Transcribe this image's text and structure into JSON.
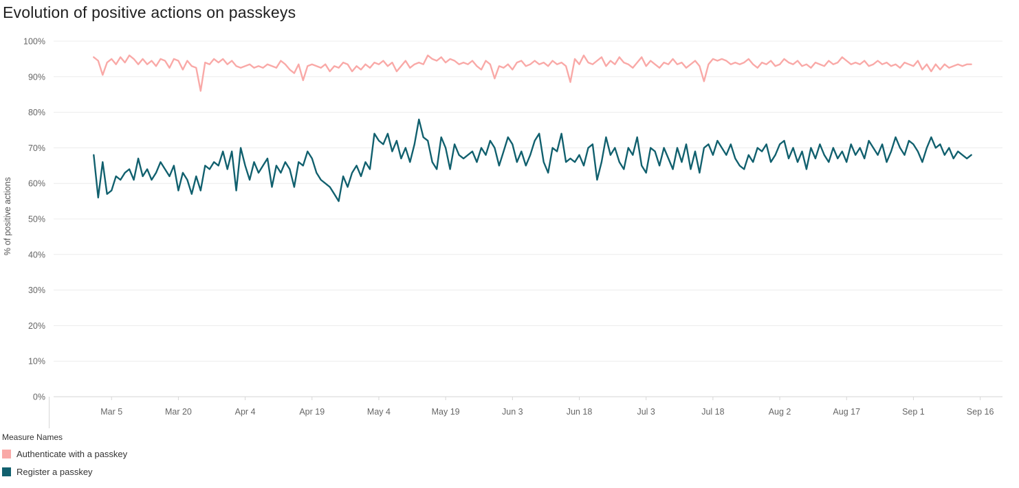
{
  "title": "Evolution of positive actions on passkeys",
  "legend": {
    "title": "Measure Names",
    "items": [
      {
        "label": "Authenticate with a passkey"
      },
      {
        "label": "Register a passkey"
      }
    ]
  },
  "chart_data": {
    "type": "line",
    "title": "Evolution of positive actions on passkeys",
    "xlabel": "",
    "ylabel": "% of positive actions",
    "ylim": [
      0,
      100
    ],
    "y_ticks": [
      0,
      10,
      20,
      30,
      40,
      50,
      60,
      70,
      80,
      90,
      100
    ],
    "grid": "horizontal",
    "legend_position": "bottom-left",
    "x_unit": "day",
    "x_start_date": "Mar 1",
    "x_domain_days": [
      -9,
      204
    ],
    "x_ticks": [
      {
        "label": "Mar 5",
        "day": 4
      },
      {
        "label": "Mar 20",
        "day": 19
      },
      {
        "label": "Apr 4",
        "day": 34
      },
      {
        "label": "Apr 19",
        "day": 49
      },
      {
        "label": "May 4",
        "day": 64
      },
      {
        "label": "May 19",
        "day": 79
      },
      {
        "label": "Jun 3",
        "day": 94
      },
      {
        "label": "Jun 18",
        "day": 109
      },
      {
        "label": "Jul 3",
        "day": 124
      },
      {
        "label": "Jul 18",
        "day": 139
      },
      {
        "label": "Aug 2",
        "day": 154
      },
      {
        "label": "Aug 17",
        "day": 169
      },
      {
        "label": "Sep 1",
        "day": 184
      },
      {
        "label": "Sep 16",
        "day": 199
      }
    ],
    "series": [
      {
        "name": "Authenticate with a passkey",
        "color": "#f9a9a7",
        "values": [
          95.5,
          94.5,
          90.5,
          94,
          95,
          93.5,
          95.5,
          94,
          96,
          95,
          93.5,
          95,
          93.5,
          94.5,
          93,
          95,
          94.5,
          92.5,
          95,
          94.5,
          92,
          94.5,
          93,
          92.5,
          86,
          94,
          93.5,
          95,
          94,
          95,
          93.5,
          94.5,
          93,
          92.5,
          93,
          93.5,
          92.5,
          93,
          92.5,
          93.5,
          93,
          92.5,
          94.5,
          93.5,
          92,
          91,
          93.5,
          89,
          93,
          93.5,
          93,
          92.5,
          93.5,
          91.5,
          93,
          92.5,
          94,
          93.5,
          91.5,
          93,
          92,
          93.5,
          92.5,
          94,
          93.5,
          94.5,
          93,
          94,
          91.5,
          93,
          94.5,
          92.5,
          93.5,
          94,
          93.5,
          96,
          95,
          94.5,
          95.5,
          94,
          95,
          94.5,
          93.5,
          94,
          93.5,
          94.5,
          93,
          92,
          94.5,
          93.5,
          89.5,
          93,
          92.5,
          93.5,
          92,
          94,
          94.5,
          93,
          93.5,
          94.5,
          93.5,
          94,
          93,
          94.5,
          93.5,
          94,
          93,
          88.5,
          95,
          93.5,
          96,
          94,
          93.5,
          94.5,
          95.5,
          93,
          94.5,
          93.5,
          95.5,
          94,
          93.5,
          92.5,
          94,
          95.5,
          93,
          94.5,
          93.5,
          92.5,
          94,
          93.5,
          95,
          93.5,
          94,
          92.5,
          93.5,
          94.5,
          93,
          88.7,
          93.5,
          95,
          94.5,
          95,
          94.5,
          93.5,
          94,
          93.5,
          94,
          95,
          93.5,
          92.5,
          94,
          93.5,
          94.5,
          93,
          93.5,
          95,
          94,
          93.5,
          94.5,
          93,
          93.5,
          92.5,
          94,
          93.5,
          93,
          94.5,
          93.5,
          94,
          95.5,
          94.5,
          93.5,
          94,
          93.5,
          94.5,
          93,
          93.5,
          94.5,
          93.5,
          94,
          93,
          93.5,
          92.5,
          94,
          93.5,
          93,
          94.5,
          92,
          93.5,
          91.5,
          93.5,
          92,
          93.5,
          92.5,
          93,
          93.5,
          93,
          93.5,
          93.5
        ]
      },
      {
        "name": "Register a passkey",
        "color": "#11606e",
        "values": [
          68,
          56,
          66,
          57,
          58,
          62,
          61,
          63,
          64,
          61,
          67,
          62,
          64,
          61,
          63,
          66,
          64,
          62,
          65,
          58,
          63,
          61,
          57,
          62,
          58,
          65,
          64,
          66,
          65,
          69,
          64,
          69,
          58,
          70,
          65,
          61,
          66,
          63,
          65,
          67,
          59,
          65,
          63,
          66,
          64,
          59,
          66,
          65,
          69,
          67,
          63,
          61,
          60,
          59,
          57,
          55,
          62,
          59,
          63,
          65,
          62,
          66,
          64,
          74,
          72,
          71,
          74,
          69,
          72,
          67,
          70,
          66,
          71,
          78,
          73,
          72,
          66,
          64,
          73,
          70,
          64,
          71,
          68,
          67,
          68,
          69,
          66,
          70,
          68,
          72,
          70,
          65,
          69,
          73,
          71,
          66,
          69,
          65,
          68,
          72,
          74,
          66,
          63,
          70,
          69,
          74,
          66,
          67,
          66,
          68,
          65,
          70,
          71,
          61,
          66,
          73,
          68,
          70,
          66,
          64,
          70,
          68,
          73,
          65,
          63,
          70,
          69,
          65,
          70,
          67,
          64,
          70,
          66,
          71,
          64,
          69,
          63,
          70,
          71,
          68,
          72,
          70,
          68,
          71,
          67,
          65,
          64,
          68,
          66,
          70,
          69,
          71,
          66,
          68,
          71,
          72,
          67,
          70,
          66,
          69,
          64,
          70,
          67,
          71,
          68,
          66,
          70,
          67,
          69,
          66,
          71,
          68,
          70,
          67,
          72,
          70,
          68,
          71,
          66,
          69,
          73,
          70,
          68,
          72,
          71,
          69,
          66,
          70,
          73,
          70,
          71,
          68,
          70,
          67,
          69,
          68,
          67,
          68
        ]
      }
    ]
  }
}
